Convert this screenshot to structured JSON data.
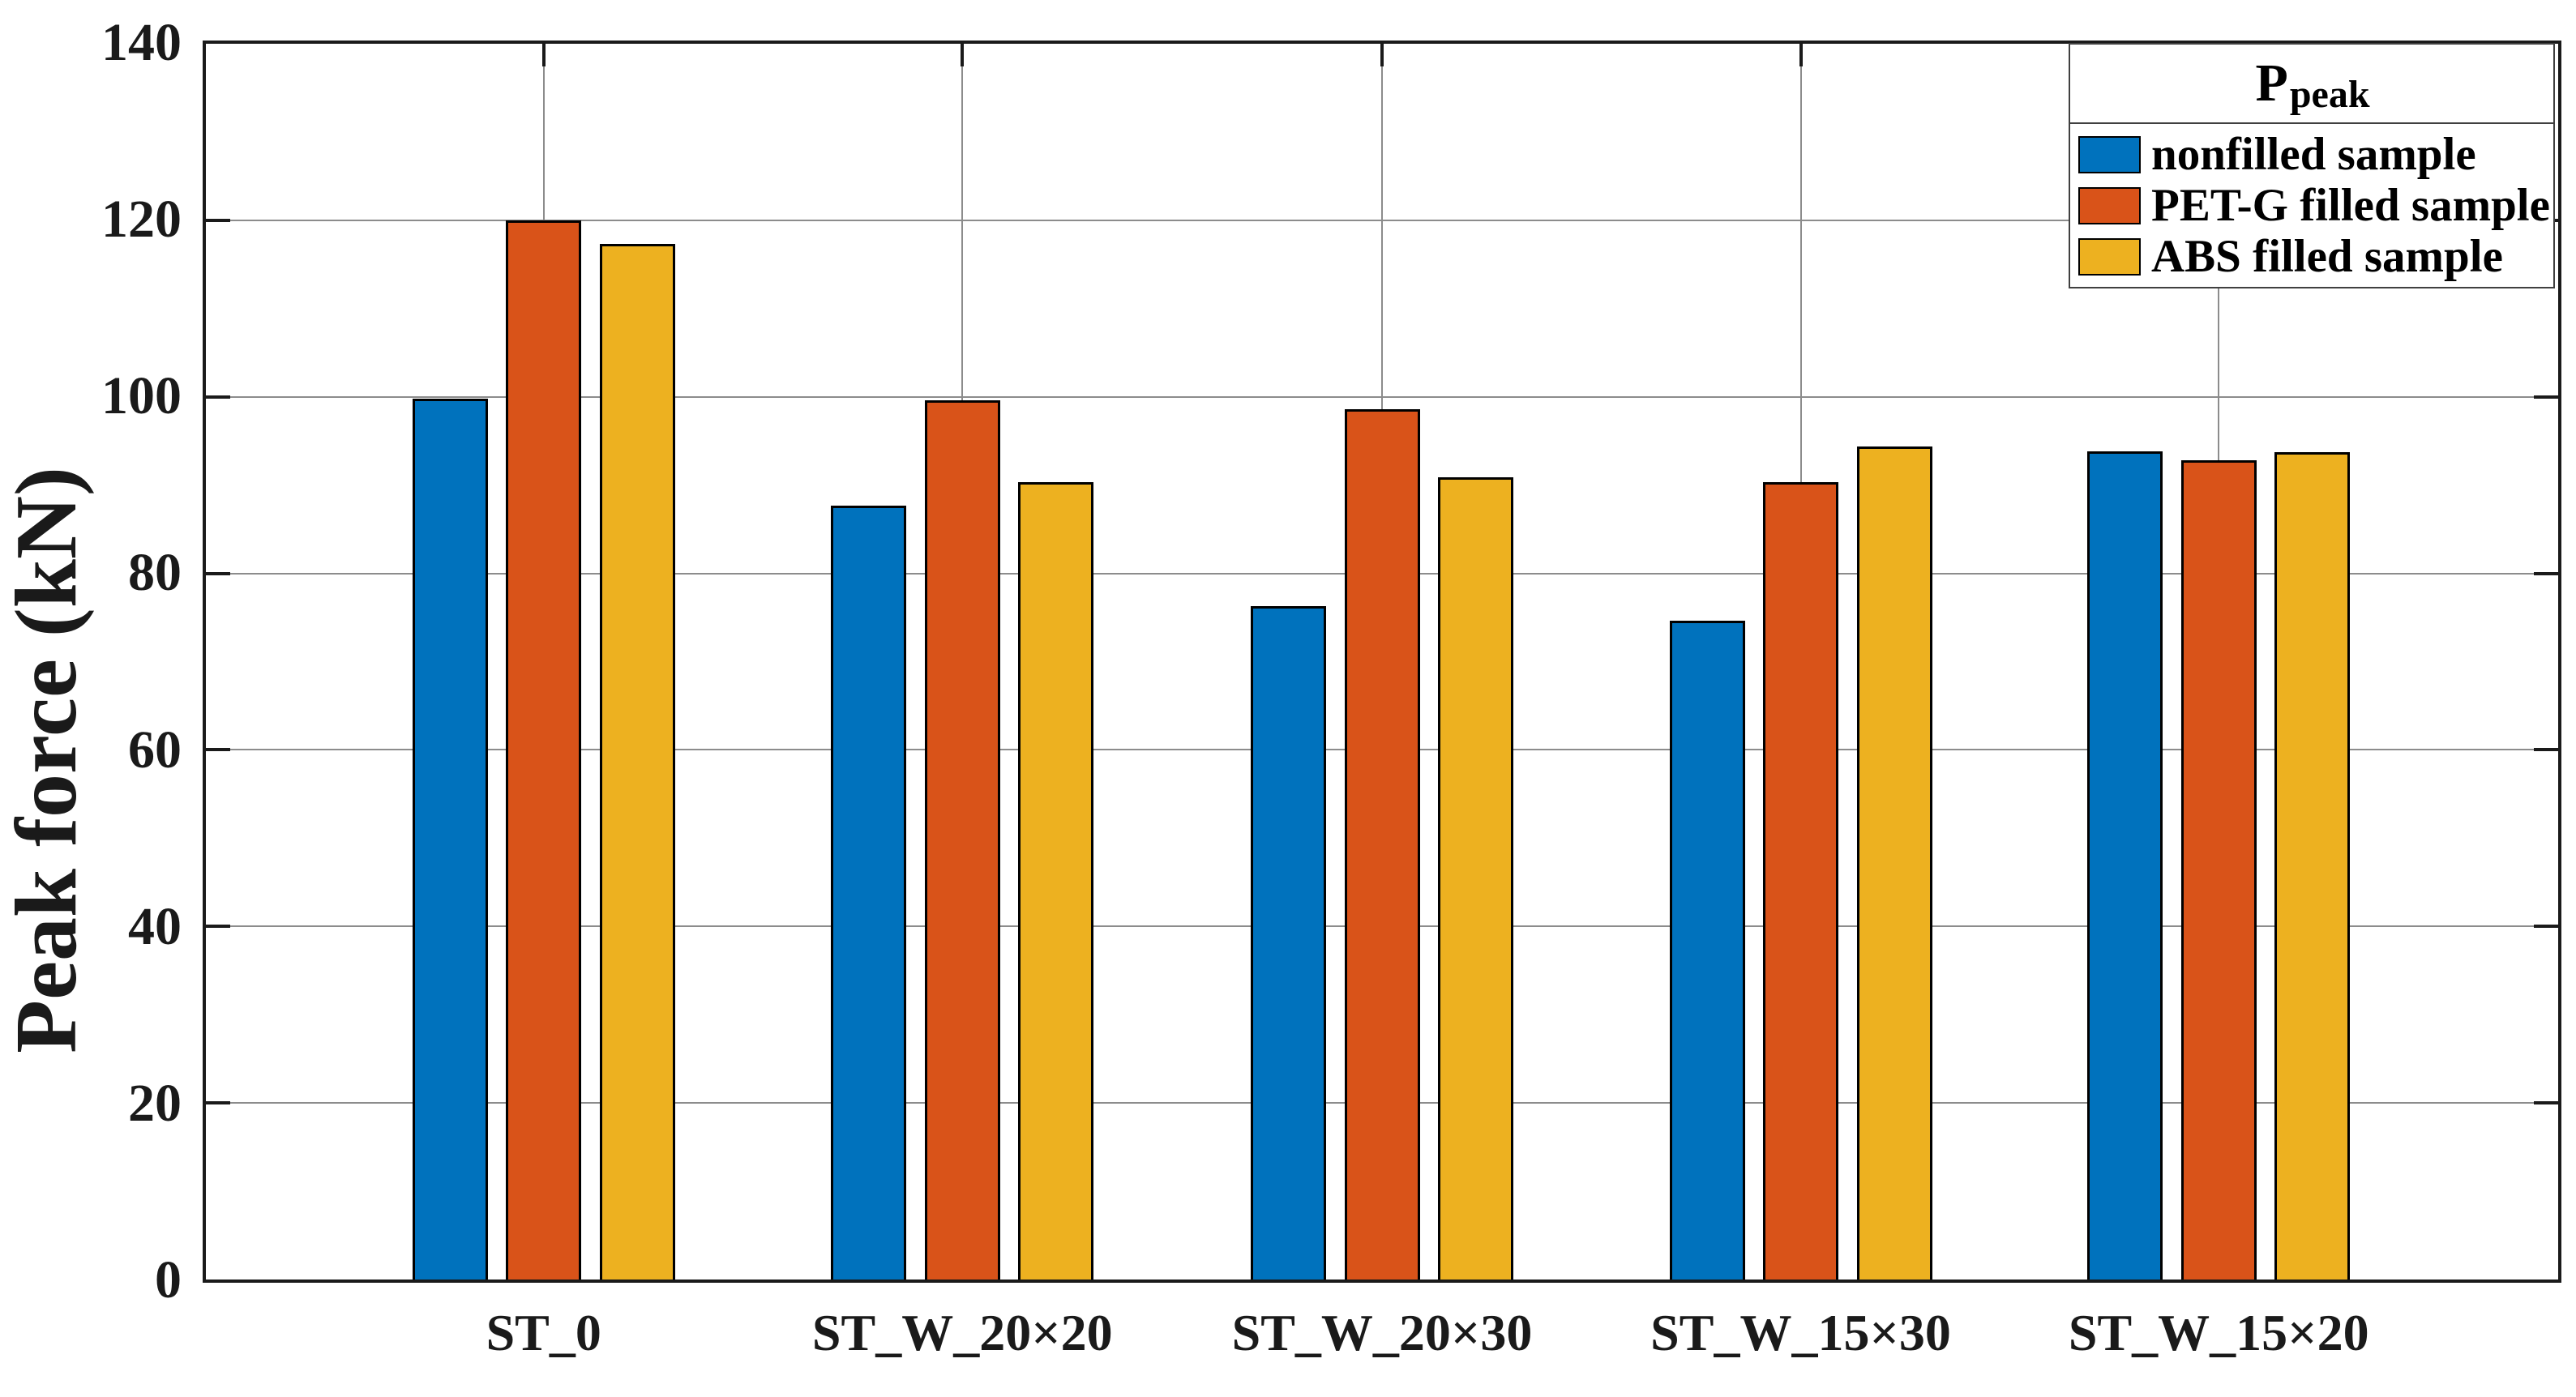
{
  "chart_data": {
    "type": "bar",
    "title": "",
    "xlabel": "",
    "ylabel": "Peak force (kN)",
    "ylim": [
      0,
      140
    ],
    "yticks": [
      0,
      20,
      40,
      60,
      80,
      100,
      120,
      140
    ],
    "grid": true,
    "categories": [
      "ST_0",
      "ST_W_20×20",
      "ST_W_20×30",
      "ST_W_15×30",
      "ST_W_15×20"
    ],
    "series": [
      {
        "name": "nonfilled sample",
        "color": "#0072BD",
        "values": [
          99.8,
          87.7,
          76.3,
          74.6,
          93.8
        ]
      },
      {
        "name": "PET-G filled sample",
        "color": "#D95319",
        "values": [
          120.0,
          99.6,
          98.6,
          90.3,
          92.8
        ]
      },
      {
        "name": "ABS filled sample",
        "color": "#EDB120",
        "values": [
          117.3,
          90.3,
          90.9,
          94.4,
          93.7
        ]
      }
    ],
    "legend": {
      "title_main": "P",
      "title_sub": "peak",
      "position": "top-right"
    }
  },
  "style_colors": {
    "axis": "#1a1a1a",
    "grid": "#8c8c8c",
    "background": "#ffffff"
  }
}
